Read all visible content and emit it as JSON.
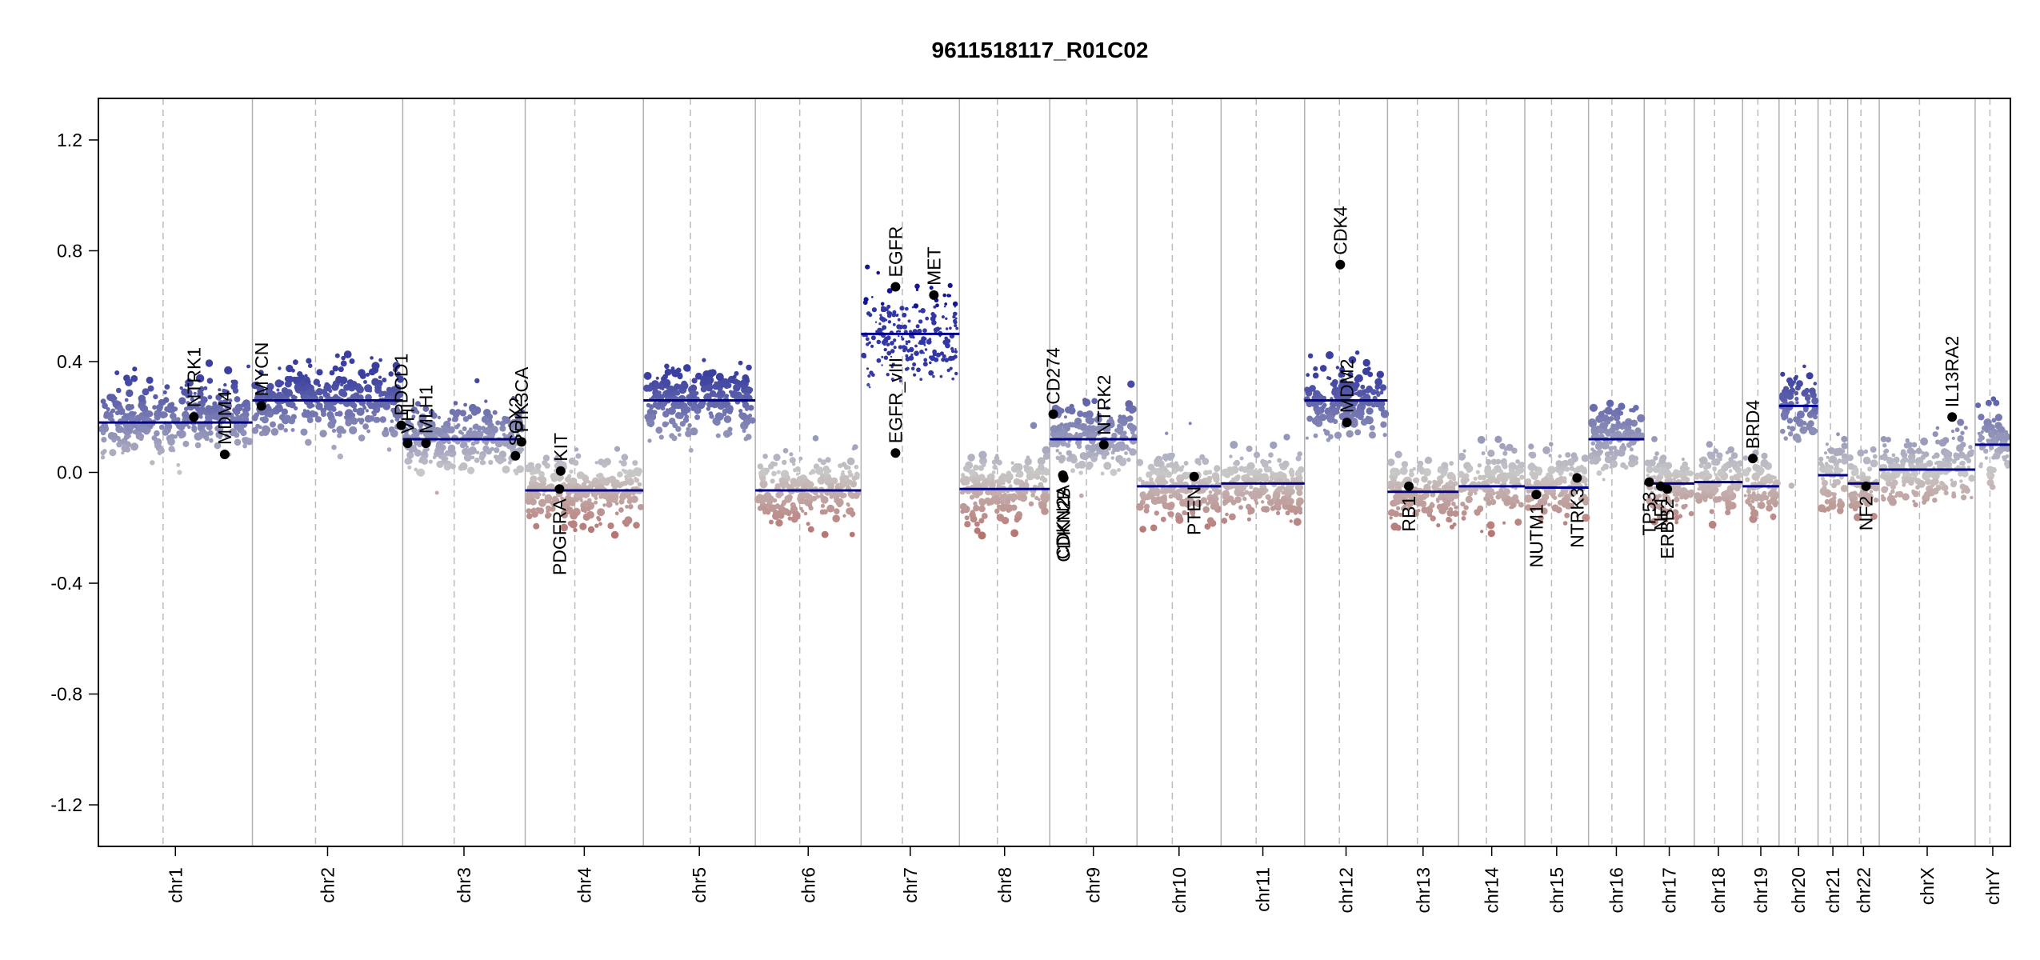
{
  "chart_data": {
    "type": "scatter",
    "title": "9611518117_R01C02",
    "xlabel": "",
    "ylabel": "",
    "ylim": [
      -1.35,
      1.35
    ],
    "y_ticks": [
      "1.2",
      "0.8",
      "0.4",
      "0.0",
      "-0.4",
      "-0.8",
      "-1.2"
    ],
    "y_tick_values": [
      1.2,
      0.8,
      0.4,
      0.0,
      -0.4,
      -0.8,
      -1.2
    ],
    "grid": false,
    "point_colors": {
      "gain": "#3a3fa0",
      "neutral": "#c8c8c8",
      "loss": "#b05a55"
    },
    "segment_color": "#00008b",
    "chromosomes": [
      {
        "name": "chr1",
        "length": 249,
        "segment": 0.18
      },
      {
        "name": "chr2",
        "length": 243,
        "segment": 0.26
      },
      {
        "name": "chr3",
        "length": 198,
        "segment": 0.12
      },
      {
        "name": "chr4",
        "length": 191,
        "segment": -0.065
      },
      {
        "name": "chr5",
        "length": 181,
        "segment": 0.26
      },
      {
        "name": "chr6",
        "length": 171,
        "segment": -0.065
      },
      {
        "name": "chr7",
        "length": 159,
        "segment": 0.5
      },
      {
        "name": "chr8",
        "length": 146,
        "segment": -0.06
      },
      {
        "name": "chr9",
        "length": 141,
        "segment": 0.12
      },
      {
        "name": "chr10",
        "length": 136,
        "segment": -0.05
      },
      {
        "name": "chr11",
        "length": 135,
        "segment": -0.04
      },
      {
        "name": "chr12",
        "length": 134,
        "segment": 0.26
      },
      {
        "name": "chr13",
        "length": 115,
        "segment": -0.07
      },
      {
        "name": "chr14",
        "length": 107,
        "segment": -0.05
      },
      {
        "name": "chr15",
        "length": 103,
        "segment": -0.055
      },
      {
        "name": "chr16",
        "length": 90,
        "segment": 0.12
      },
      {
        "name": "chr17",
        "length": 81,
        "segment": -0.04
      },
      {
        "name": "chr18",
        "length": 78,
        "segment": -0.035
      },
      {
        "name": "chr19",
        "length": 59,
        "segment": -0.05
      },
      {
        "name": "chr20",
        "length": 63,
        "segment": 0.24
      },
      {
        "name": "chr21",
        "length": 48,
        "segment": -0.01
      },
      {
        "name": "chr22",
        "length": 51,
        "segment": -0.04
      },
      {
        "name": "chrX",
        "length": 155,
        "segment": 0.01
      },
      {
        "name": "chrY",
        "length": 57,
        "segment": 0.1
      }
    ],
    "genes": [
      {
        "name": "NTRK1",
        "chr": "chr1",
        "pos": 0.62,
        "value": 0.2,
        "label_dir": "up"
      },
      {
        "name": "MDM4",
        "chr": "chr1",
        "pos": 0.82,
        "value": 0.065,
        "label_dir": "up"
      },
      {
        "name": "MYCN",
        "chr": "chr2",
        "pos": 0.06,
        "value": 0.24,
        "label_dir": "up"
      },
      {
        "name": "PDCD1",
        "chr": "chr2",
        "pos": 0.99,
        "value": 0.17,
        "label_dir": "up"
      },
      {
        "name": "VHL",
        "chr": "chr3",
        "pos": 0.04,
        "value": 0.105,
        "label_dir": "up"
      },
      {
        "name": "MLH1",
        "chr": "chr3",
        "pos": 0.19,
        "value": 0.105,
        "label_dir": "up"
      },
      {
        "name": "SOX2",
        "chr": "chr3",
        "pos": 0.92,
        "value": 0.06,
        "label_dir": "up"
      },
      {
        "name": "PIK3CA",
        "chr": "chr3",
        "pos": 0.97,
        "value": 0.11,
        "label_dir": "up"
      },
      {
        "name": "PDGFRA",
        "chr": "chr4",
        "pos": 0.29,
        "value": -0.06,
        "label_dir": "down"
      },
      {
        "name": "KIT",
        "chr": "chr4",
        "pos": 0.3,
        "value": 0.005,
        "label_dir": "up"
      },
      {
        "name": "EGFR",
        "chr": "chr7",
        "pos": 0.35,
        "value": 0.67,
        "label_dir": "up"
      },
      {
        "name": "EGFR_vIII",
        "chr": "chr7",
        "pos": 0.35,
        "value": 0.07,
        "label_dir": "up"
      },
      {
        "name": "MET",
        "chr": "chr7",
        "pos": 0.74,
        "value": 0.64,
        "label_dir": "up"
      },
      {
        "name": "CD274",
        "chr": "chr9",
        "pos": 0.04,
        "value": 0.21,
        "label_dir": "up"
      },
      {
        "name": "CDKN2A",
        "chr": "chr9",
        "pos": 0.15,
        "value": -0.01,
        "label_dir": "down"
      },
      {
        "name": "CDKN2B",
        "chr": "chr9",
        "pos": 0.16,
        "value": -0.02,
        "label_dir": "down"
      },
      {
        "name": "NTRK2",
        "chr": "chr9",
        "pos": 0.62,
        "value": 0.1,
        "label_dir": "up"
      },
      {
        "name": "PTEN",
        "chr": "chr10",
        "pos": 0.68,
        "value": -0.015,
        "label_dir": "down"
      },
      {
        "name": "CDK4",
        "chr": "chr12",
        "pos": 0.43,
        "value": 0.75,
        "label_dir": "up"
      },
      {
        "name": "MDM2",
        "chr": "chr12",
        "pos": 0.51,
        "value": 0.18,
        "label_dir": "up"
      },
      {
        "name": "RB1",
        "chr": "chr13",
        "pos": 0.3,
        "value": -0.05,
        "label_dir": "down"
      },
      {
        "name": "NUTM1",
        "chr": "chr15",
        "pos": 0.18,
        "value": -0.08,
        "label_dir": "down"
      },
      {
        "name": "NTRK3",
        "chr": "chr15",
        "pos": 0.82,
        "value": -0.02,
        "label_dir": "down"
      },
      {
        "name": "TP53",
        "chr": "chr17",
        "pos": 0.1,
        "value": -0.035,
        "label_dir": "down"
      },
      {
        "name": "NF1",
        "chr": "chr17",
        "pos": 0.33,
        "value": -0.05,
        "label_dir": "down"
      },
      {
        "name": "ERBB2",
        "chr": "chr17",
        "pos": 0.46,
        "value": -0.06,
        "label_dir": "down"
      },
      {
        "name": "BRD4",
        "chr": "chr19",
        "pos": 0.28,
        "value": 0.05,
        "label_dir": "up"
      },
      {
        "name": "NF2",
        "chr": "chr22",
        "pos": 0.58,
        "value": -0.05,
        "label_dir": "down"
      },
      {
        "name": "IL13RA2",
        "chr": "chrX",
        "pos": 0.76,
        "value": 0.2,
        "label_dir": "up"
      }
    ]
  }
}
